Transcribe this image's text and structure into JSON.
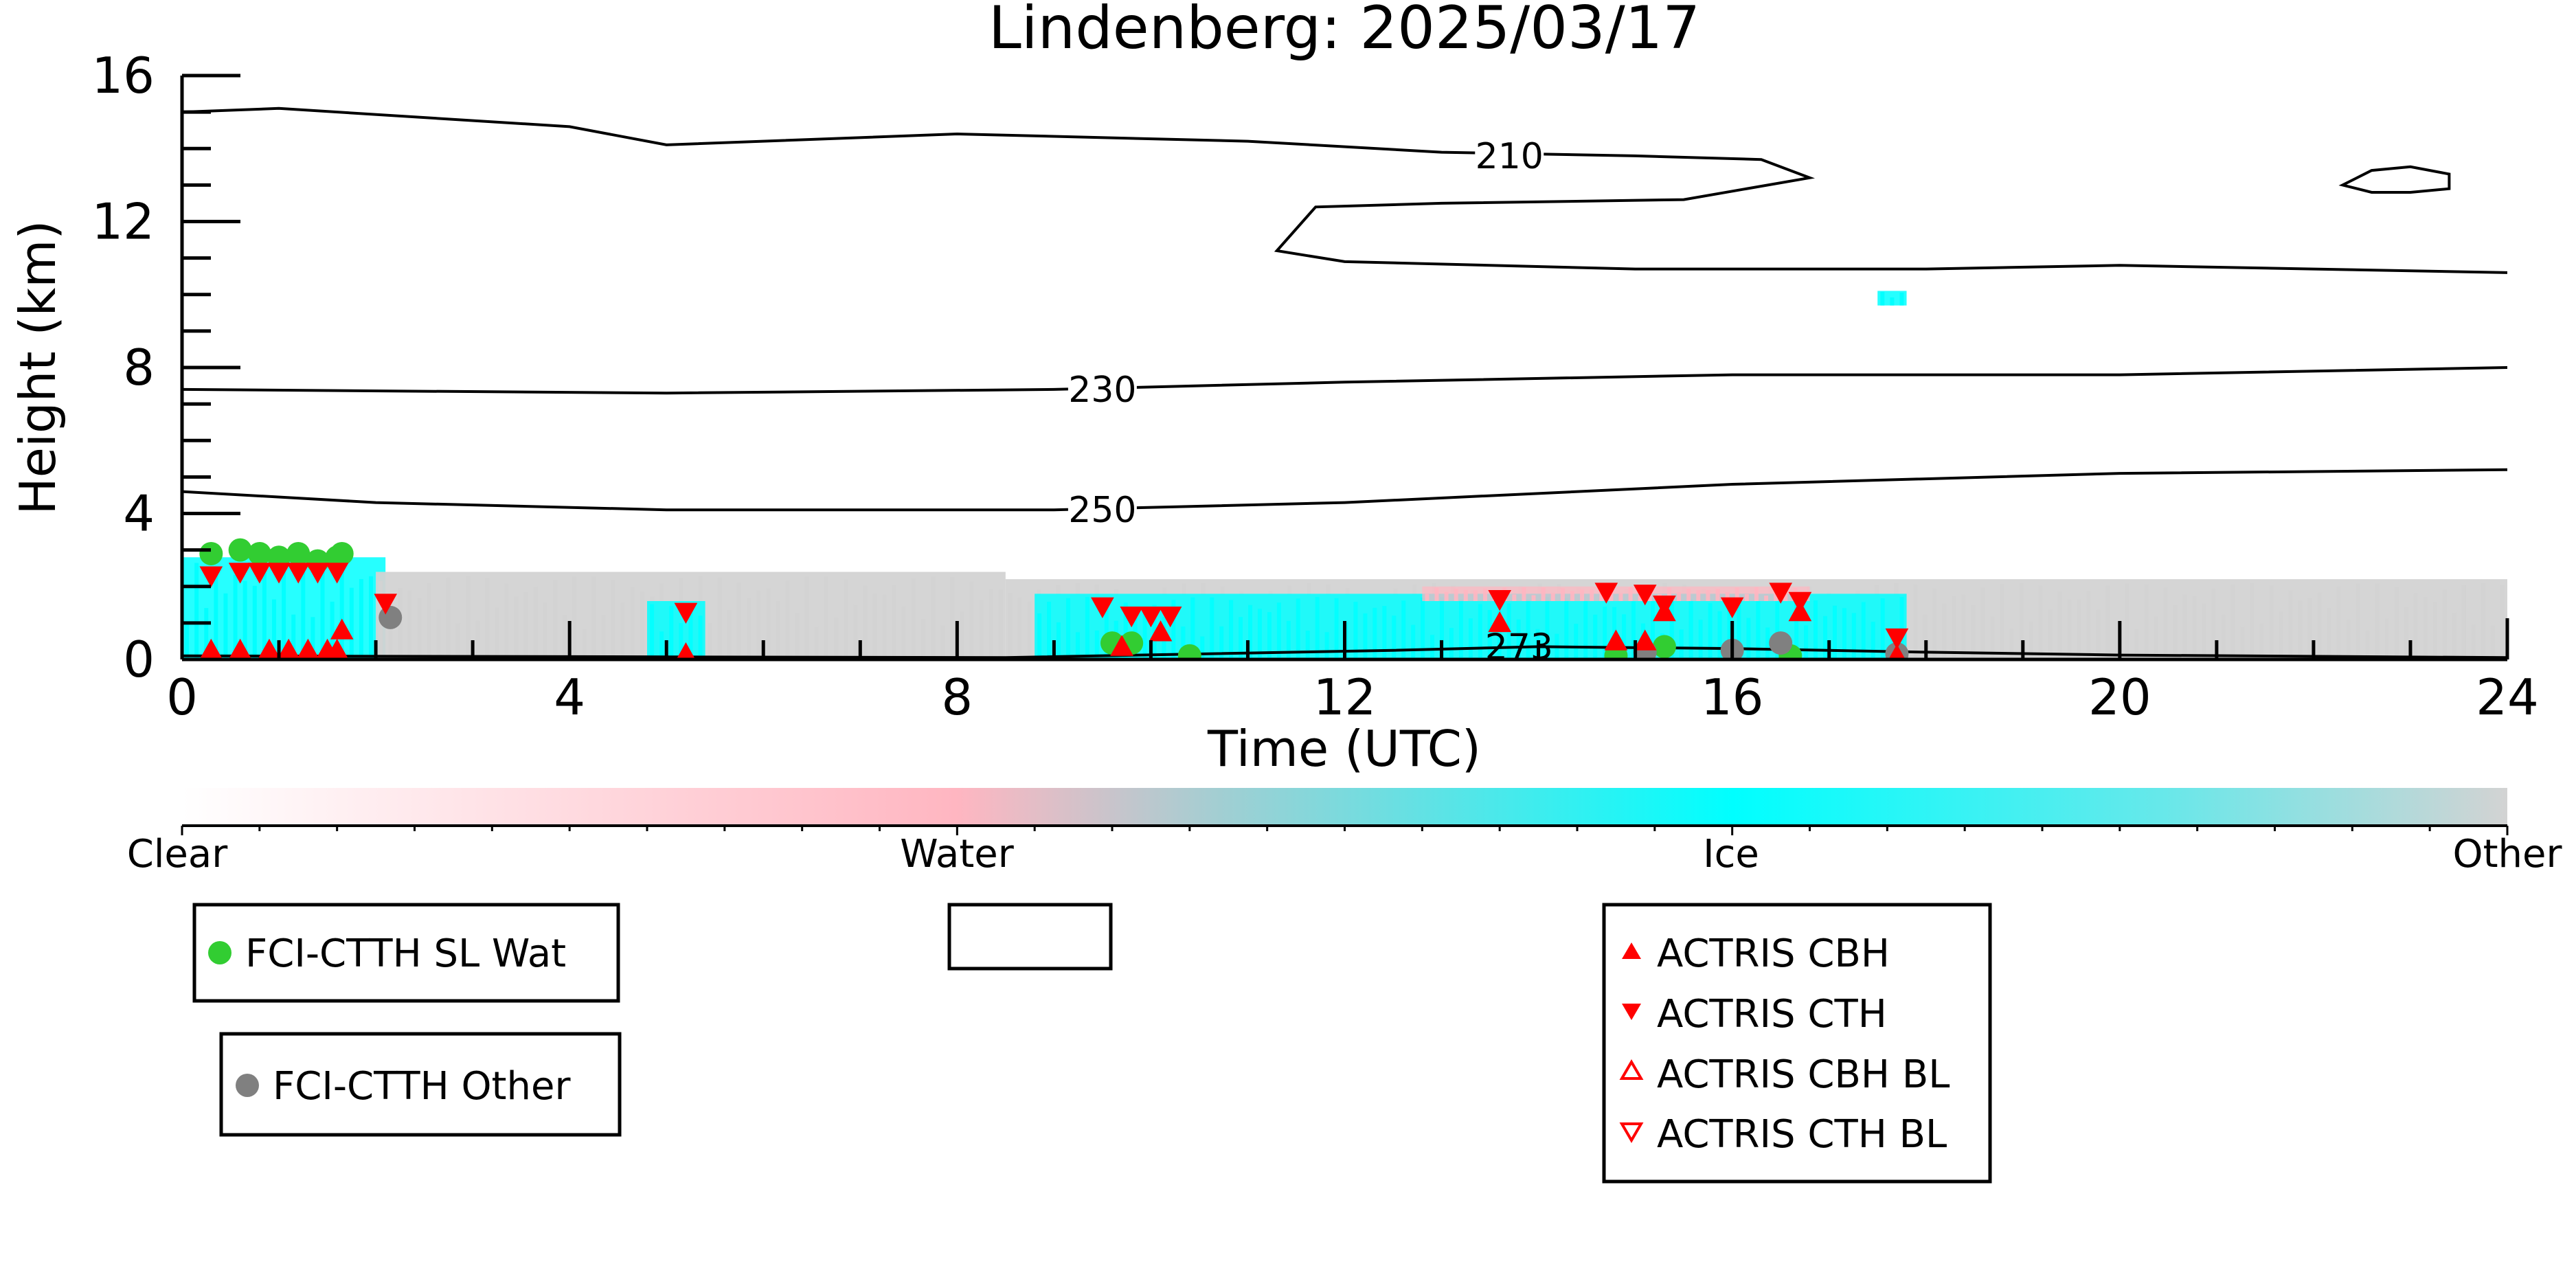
{
  "chart_data": {
    "type": "scatter",
    "title": "Lindenberg: 2025/03/17",
    "xlabel": "Time (UTC)",
    "ylabel": "Height (km)",
    "xlim": [
      0,
      24
    ],
    "ylim": [
      0,
      16
    ],
    "xticks": [
      0,
      4,
      8,
      12,
      16,
      20,
      24
    ],
    "yticks": [
      0,
      4,
      8,
      12,
      16
    ],
    "background_field": {
      "description_type": "cloud classification curtain",
      "colorbar_labels": [
        "Clear",
        "Water",
        "Ice",
        "Other"
      ],
      "colorbar_colors": [
        "#ffffff",
        "#ffb6c1",
        "#00ffff",
        "#d3d3d3"
      ],
      "cloud_blocks": [
        {
          "class": "Ice",
          "x0": 0.0,
          "x1": 2.1,
          "y0": 0.0,
          "y1": 2.8
        },
        {
          "class": "Other",
          "x0": 2.0,
          "x1": 8.5,
          "y0": 0.0,
          "y1": 2.4
        },
        {
          "class": "Ice",
          "x0": 4.8,
          "x1": 5.4,
          "y0": 0.0,
          "y1": 1.6
        },
        {
          "class": "Other",
          "x0": 8.5,
          "x1": 24.0,
          "y0": 0.0,
          "y1": 2.2
        },
        {
          "class": "Ice",
          "x0": 8.8,
          "x1": 17.8,
          "y0": 0.0,
          "y1": 1.8
        },
        {
          "class": "Water",
          "x0": 12.8,
          "x1": 16.8,
          "y0": 1.6,
          "y1": 2.0
        },
        {
          "class": "Ice",
          "x0": 17.5,
          "x1": 17.8,
          "y0": 9.7,
          "y1": 10.1
        }
      ]
    },
    "temperature_contours": [
      {
        "label": "210",
        "label_x": 13.7,
        "label_y": 13.8,
        "points": [
          [
            0,
            15
          ],
          [
            1,
            15.1
          ],
          [
            4,
            14.6
          ],
          [
            5,
            14.1
          ],
          [
            8,
            14.4
          ],
          [
            11,
            14.2
          ],
          [
            13,
            13.9
          ],
          [
            15,
            13.8
          ],
          [
            16.3,
            13.7
          ],
          [
            16.8,
            13.2
          ],
          [
            15.5,
            12.6
          ],
          [
            13,
            12.5
          ],
          [
            11.7,
            12.4
          ],
          [
            11.3,
            11.2
          ],
          [
            12,
            10.9
          ],
          [
            15,
            10.7
          ],
          [
            18,
            10.7
          ],
          [
            20,
            10.8
          ],
          [
            22,
            10.7
          ],
          [
            24,
            10.6
          ]
        ]
      },
      {
        "label": "",
        "closed": true,
        "points": [
          [
            22.3,
            13.0
          ],
          [
            22.6,
            13.4
          ],
          [
            23.0,
            13.5
          ],
          [
            23.4,
            13.3
          ],
          [
            23.4,
            12.9
          ],
          [
            23.0,
            12.8
          ],
          [
            22.6,
            12.8
          ]
        ]
      },
      {
        "label": "230",
        "label_x": 9.5,
        "label_y": 7.4,
        "points": [
          [
            0,
            7.4
          ],
          [
            5,
            7.3
          ],
          [
            9,
            7.4
          ],
          [
            12,
            7.6
          ],
          [
            16,
            7.8
          ],
          [
            20,
            7.8
          ],
          [
            24,
            8.0
          ]
        ]
      },
      {
        "label": "250",
        "label_x": 9.5,
        "label_y": 4.1,
        "points": [
          [
            0,
            4.6
          ],
          [
            2,
            4.3
          ],
          [
            5,
            4.1
          ],
          [
            9,
            4.1
          ],
          [
            12,
            4.3
          ],
          [
            16,
            4.8
          ],
          [
            20,
            5.1
          ],
          [
            24,
            5.2
          ]
        ]
      },
      {
        "label": "273",
        "label_x": 13.8,
        "label_y": 0.35,
        "points": [
          [
            0,
            0.1
          ],
          [
            8.5,
            0.05
          ],
          [
            10.5,
            0.15
          ],
          [
            12.5,
            0.25
          ],
          [
            14,
            0.35
          ],
          [
            16,
            0.3
          ],
          [
            18,
            0.2
          ],
          [
            20,
            0.12
          ],
          [
            24,
            0.05
          ]
        ]
      }
    ],
    "series": [
      {
        "name": "FCI-CTTH SL Wat",
        "marker": "circle",
        "color": "#32cd32",
        "x": [
          0.3,
          0.6,
          0.8,
          1.0,
          1.2,
          1.4,
          1.6,
          1.65,
          9.6,
          9.8,
          10.4,
          14.8,
          15.3,
          16.6
        ],
        "y": [
          2.9,
          3.0,
          2.9,
          2.8,
          2.9,
          2.7,
          2.8,
          2.9,
          0.45,
          0.45,
          0.1,
          0.1,
          0.35,
          0.1
        ]
      },
      {
        "name": "FCI-CTTH Other",
        "marker": "circle",
        "color": "#808080",
        "x": [
          2.15,
          15.1,
          16.0,
          16.5,
          17.7
        ],
        "y": [
          1.15,
          0.2,
          0.25,
          0.45,
          0.15
        ]
      },
      {
        "name": "ACTRIS CBH",
        "marker": "triangle-up",
        "color": "#ff0000",
        "x": [
          0.3,
          0.6,
          0.9,
          1.1,
          1.3,
          1.5,
          1.6,
          1.65,
          5.2,
          9.7,
          10.1,
          13.6,
          14.8,
          15.1,
          15.3,
          16.7,
          17.7
        ],
        "y": [
          0.25,
          0.25,
          0.25,
          0.25,
          0.25,
          0.25,
          0.25,
          0.8,
          0.15,
          0.35,
          0.75,
          1.0,
          0.5,
          0.5,
          1.3,
          1.3,
          0.1
        ]
      },
      {
        "name": "ACTRIS CTH",
        "marker": "triangle-down",
        "color": "#ff0000",
        "x": [
          0.3,
          0.6,
          0.8,
          1.0,
          1.2,
          1.4,
          1.6,
          2.1,
          5.2,
          9.5,
          9.8,
          10.0,
          10.2,
          13.6,
          14.7,
          15.1,
          15.3,
          16.0,
          16.5,
          16.7,
          17.7
        ],
        "y": [
          2.3,
          2.4,
          2.4,
          2.4,
          2.4,
          2.4,
          2.4,
          1.55,
          1.3,
          1.45,
          1.2,
          1.2,
          1.2,
          1.65,
          1.85,
          1.8,
          1.5,
          1.45,
          1.85,
          1.6,
          0.6
        ]
      },
      {
        "name": "ACTRIS CBH BL",
        "marker": "triangle-up-open",
        "color": "#ff0000",
        "x": [],
        "y": []
      },
      {
        "name": "ACTRIS CTH BL",
        "marker": "triangle-down-open",
        "color": "#ff0000",
        "x": [],
        "y": []
      }
    ],
    "legends": [
      {
        "entries": [
          "FCI-CTTH SL Wat"
        ]
      },
      {
        "entries": [
          "FCI-CTTH Other"
        ]
      },
      {
        "entries": []
      },
      {
        "entries": [
          "ACTRIS CBH",
          "ACTRIS CTH",
          "ACTRIS CBH BL",
          "ACTRIS CTH BL"
        ]
      }
    ],
    "grid": false
  }
}
